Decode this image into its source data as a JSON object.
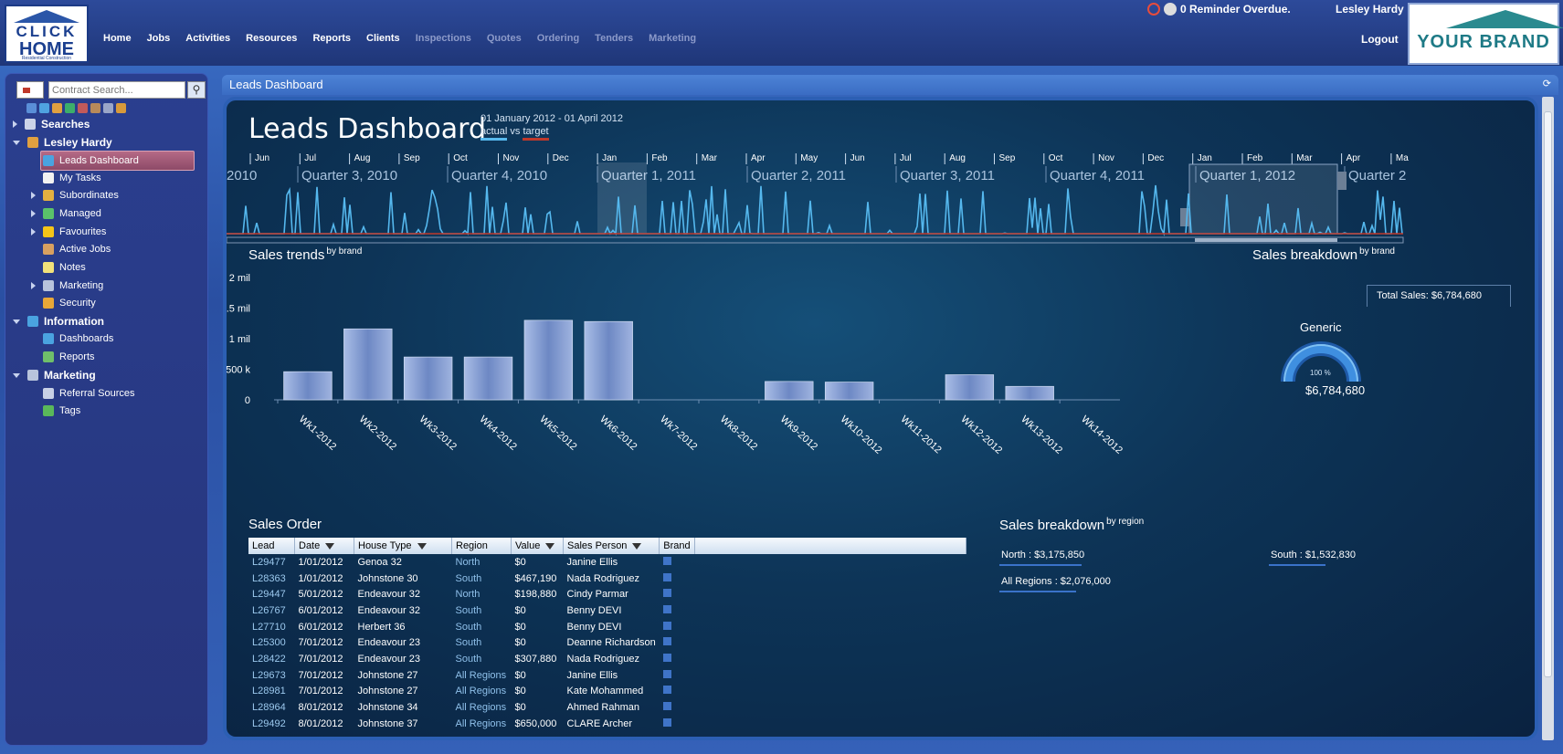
{
  "app": {
    "logo_line1": "CLICK",
    "logo_line2": "HOME",
    "logo_line3": "Residential Construction",
    "brand_logo": "YOUR BRAND",
    "nav": [
      {
        "label": "Home",
        "enabled": true
      },
      {
        "label": "Jobs",
        "enabled": true
      },
      {
        "label": "Activities",
        "enabled": true
      },
      {
        "label": "Resources",
        "enabled": true
      },
      {
        "label": "Reports",
        "enabled": true
      },
      {
        "label": "Clients",
        "enabled": true
      },
      {
        "label": "Inspections",
        "enabled": false
      },
      {
        "label": "Quotes",
        "enabled": false
      },
      {
        "label": "Ordering",
        "enabled": false
      },
      {
        "label": "Tenders",
        "enabled": false
      },
      {
        "label": "Marketing",
        "enabled": false
      }
    ],
    "reminder": "0 Reminder Overdue.",
    "user": "Lesley Hardy",
    "logout": "Logout"
  },
  "sidebar": {
    "search_placeholder": "Contract Search...",
    "items": [
      {
        "label": "Searches",
        "level": 0,
        "head": true,
        "arrow": "closed",
        "icon": "binoculars-icon"
      },
      {
        "label": "Lesley Hardy",
        "level": 0,
        "head": true,
        "arrow": "open",
        "icon": "user-icon"
      },
      {
        "label": "Leads Dashboard",
        "level": 1,
        "selected": true,
        "icon": "globe-icon"
      },
      {
        "label": "My Tasks",
        "level": 1,
        "icon": "tasks-icon"
      },
      {
        "label": "Subordinates",
        "level": 1,
        "arrow": "closed",
        "icon": "people-icon"
      },
      {
        "label": "Managed",
        "level": 1,
        "arrow": "closed",
        "icon": "managed-icon"
      },
      {
        "label": "Favourites",
        "level": 1,
        "arrow": "closed",
        "icon": "star-icon"
      },
      {
        "label": "Active Jobs",
        "level": 1,
        "icon": "hammer-icon"
      },
      {
        "label": "Notes",
        "level": 1,
        "icon": "notes-icon"
      },
      {
        "label": "Marketing",
        "level": 1,
        "arrow": "closed",
        "icon": "marketing-icon"
      },
      {
        "label": "Security",
        "level": 1,
        "icon": "security-icon"
      },
      {
        "label": "Information",
        "level": 0,
        "head": true,
        "arrow": "open",
        "icon": "globe-icon"
      },
      {
        "label": "Dashboards",
        "level": 1,
        "icon": "globe-icon"
      },
      {
        "label": "Reports",
        "level": 1,
        "icon": "chart-icon"
      },
      {
        "label": "Marketing",
        "level": 0,
        "head": true,
        "arrow": "open",
        "icon": "marketing-icon"
      },
      {
        "label": "Referral Sources",
        "level": 1,
        "icon": "referral-icon"
      },
      {
        "label": "Tags",
        "level": 1,
        "icon": "tag-icon"
      }
    ]
  },
  "panel": {
    "title": "Leads Dashboard"
  },
  "dashboard": {
    "title": "Leads Dashboard",
    "date_range": "01 January 2012  -  01 April 2012",
    "legend_actual": "actual",
    "legend_vs": "vs",
    "legend_target": "target",
    "sales_trends_title": "Sales trends",
    "sales_trends_sup": "by brand",
    "sales_brand_title": "Sales breakdown",
    "sales_brand_sup": "by brand",
    "total_sales": "Total Sales:  $6,784,680",
    "gauge_name": "Generic",
    "gauge_percent": "100 %",
    "gauge_fraction": 1.0,
    "gauge_value": "$6,784,680",
    "sales_order_title": "Sales Order",
    "sales_region_title": "Sales breakdown",
    "sales_region_sup": "by region",
    "regions": [
      {
        "label": "North : $3,175,850"
      },
      {
        "label": "South : $1,532,830"
      },
      {
        "label": "All Regions : $2,076,000"
      }
    ]
  },
  "timeline": {
    "months": [
      "Jun",
      "Jul",
      "Aug",
      "Sep",
      "Oct",
      "Nov",
      "Dec",
      "Jan",
      "Feb",
      "Mar",
      "Apr",
      "May",
      "Jun",
      "Jul",
      "Aug",
      "Sep",
      "Oct",
      "Nov",
      "Dec",
      "Jan",
      "Feb",
      "Mar",
      "Apr",
      "Ma"
    ],
    "quarters": [
      "2010",
      "Quarter 3, 2010",
      "Quarter 4, 2010",
      "Quarter 1, 2011",
      "Quarter 2, 2011",
      "Quarter 3, 2011",
      "Quarter 4, 2011",
      "Quarter 1, 2012",
      "Quarter 2"
    ]
  },
  "table": {
    "columns": [
      {
        "label": "Lead",
        "filter": false
      },
      {
        "label": "Date",
        "filter": true
      },
      {
        "label": "House Type",
        "filter": true
      },
      {
        "label": "Region",
        "filter": false
      },
      {
        "label": "Value",
        "filter": true
      },
      {
        "label": "Sales Person",
        "filter": true
      },
      {
        "label": "Brand",
        "filter": false
      }
    ],
    "rows": [
      [
        "L29477",
        "1/01/2012",
        "Genoa 32",
        "North",
        "$0",
        "Janine Ellis"
      ],
      [
        "L28363",
        "1/01/2012",
        "Johnstone 30",
        "South",
        "$467,190",
        "Nada Rodriguez"
      ],
      [
        "L29447",
        "5/01/2012",
        "Endeavour 32",
        "North",
        "$198,880",
        "Cindy Parmar"
      ],
      [
        "L26767",
        "6/01/2012",
        "Endeavour 32",
        "South",
        "$0",
        "Benny DEVI"
      ],
      [
        "L27710",
        "6/01/2012",
        "Herbert 36",
        "South",
        "$0",
        "Benny DEVI"
      ],
      [
        "L25300",
        "7/01/2012",
        "Endeavour 23",
        "South",
        "$0",
        "Deanne Richardson"
      ],
      [
        "L28422",
        "7/01/2012",
        "Endeavour 23",
        "South",
        "$307,880",
        "Nada Rodriguez"
      ],
      [
        "L29673",
        "7/01/2012",
        "Johnstone 27",
        "All Regions",
        "$0",
        "Janine Ellis"
      ],
      [
        "L28981",
        "7/01/2012",
        "Johnstone 27",
        "All Regions",
        "$0",
        "Kate Mohammed"
      ],
      [
        "L28964",
        "8/01/2012",
        "Johnstone 34",
        "All Regions",
        "$0",
        "Ahmed Rahman"
      ],
      [
        "L29492",
        "8/01/2012",
        "Johnstone 37",
        "All Regions",
        "$650,000",
        "CLARE Archer"
      ]
    ]
  },
  "chart_data": {
    "type": "bar",
    "title": "Sales trends",
    "categories": [
      "Wk1-2012",
      "Wk2-2012",
      "Wk3-2012",
      "Wk4-2012",
      "Wk5-2012",
      "Wk6-2012",
      "Wk7-2012",
      "Wk8-2012",
      "Wk9-2012",
      "Wk10-2012",
      "Wk11-2012",
      "Wk12-2012",
      "Wk13-2012",
      "Wk14-2012"
    ],
    "values": [
      460000,
      1160000,
      700000,
      700000,
      1300000,
      1280000,
      0,
      0,
      300000,
      290000,
      0,
      410000,
      220000,
      0
    ],
    "ytick_labels": [
      "0",
      "500 k",
      "1 mil",
      "1.5 mil",
      "2 mil"
    ],
    "ytick_values": [
      0,
      500000,
      1000000,
      1500000,
      2000000
    ],
    "ylim": [
      0,
      2000000
    ],
    "bar_color": "#8fa6d8"
  }
}
